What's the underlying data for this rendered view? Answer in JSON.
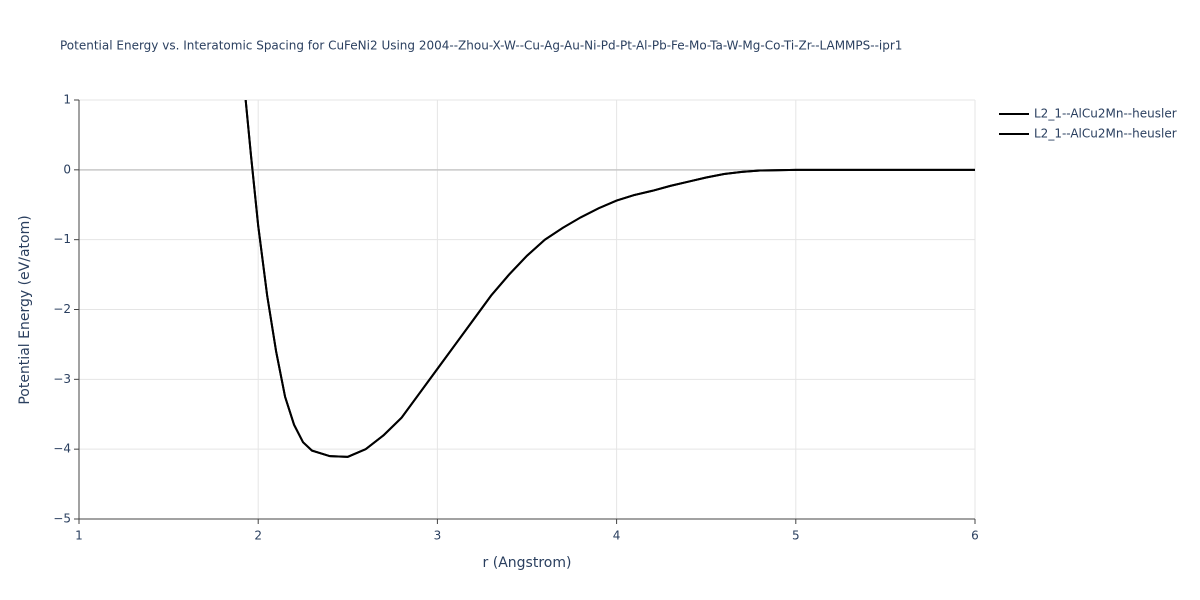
{
  "chart_data": {
    "type": "line",
    "title": "Potential Energy vs. Interatomic Spacing for CuFeNi2 Using 2004--Zhou-X-W--Cu-Ag-Au-Ni-Pd-Pt-Al-Pb-Fe-Mo-Ta-W-Mg-Co-Ti-Zr--LAMMPS--ipr1",
    "x_label": "r (Angstrom)",
    "y_label": "Potential Energy (eV/atom)",
    "x": [
      1.93,
      1.96,
      2.0,
      2.05,
      2.1,
      2.15,
      2.2,
      2.25,
      2.3,
      2.4,
      2.5,
      2.6,
      2.7,
      2.8,
      2.9,
      3.0,
      3.1,
      3.2,
      3.3,
      3.4,
      3.5,
      3.6,
      3.7,
      3.8,
      3.9,
      4.0,
      4.1,
      4.2,
      4.3,
      4.4,
      4.5,
      4.6,
      4.7,
      4.8,
      5.0,
      5.5,
      6.0
    ],
    "series": [
      {
        "name": "L2_1--AlCu2Mn--heusler",
        "color": "#000000",
        "values": [
          1.0,
          0.2,
          -0.8,
          -1.8,
          -2.6,
          -3.25,
          -3.65,
          -3.9,
          -4.02,
          -4.1,
          -4.11,
          -4.0,
          -3.8,
          -3.55,
          -3.2,
          -2.85,
          -2.5,
          -2.15,
          -1.8,
          -1.5,
          -1.23,
          -1.0,
          -0.83,
          -0.68,
          -0.55,
          -0.44,
          -0.36,
          -0.3,
          -0.23,
          -0.17,
          -0.11,
          -0.06,
          -0.03,
          -0.01,
          0,
          0,
          0
        ]
      },
      {
        "name": "L2_1--AlCu2Mn--heusler",
        "color": "#000000",
        "values": [
          1.0,
          0.2,
          -0.8,
          -1.8,
          -2.6,
          -3.25,
          -3.65,
          -3.9,
          -4.02,
          -4.1,
          -4.11,
          -4.0,
          -3.8,
          -3.55,
          -3.2,
          -2.85,
          -2.5,
          -2.15,
          -1.8,
          -1.5,
          -1.23,
          -1.0,
          -0.83,
          -0.68,
          -0.55,
          -0.44,
          -0.36,
          -0.3,
          -0.23,
          -0.17,
          -0.11,
          -0.06,
          -0.03,
          -0.01,
          0,
          0,
          0
        ]
      }
    ],
    "xlim": [
      1,
      6
    ],
    "ylim": [
      -5,
      1
    ],
    "xticks": [
      1,
      2,
      3,
      4,
      5,
      6
    ],
    "yticks": [
      1,
      0,
      {
        "value": -1,
        "label": "−1"
      },
      {
        "value": -2,
        "label": "−2"
      },
      {
        "value": -3,
        "label": "−3"
      },
      {
        "value": -4,
        "label": "−4"
      },
      {
        "value": -5,
        "label": "−5"
      }
    ],
    "grid": true,
    "legend": "outside-top-right"
  }
}
